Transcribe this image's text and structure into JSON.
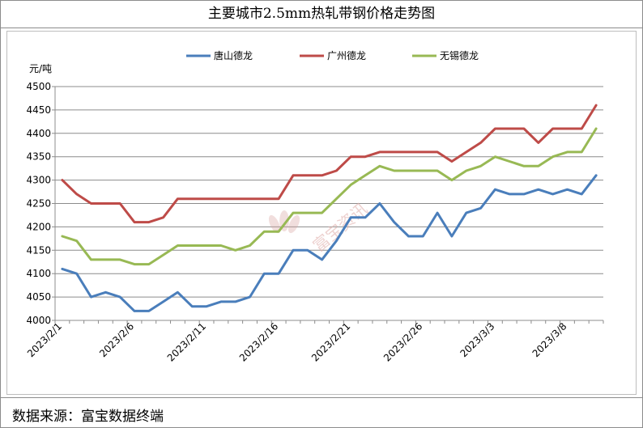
{
  "page": {
    "title": "主要城市2.5mm热轧带钢价格走势图",
    "source": "数据来源：富宝数据终端",
    "watermark": "富宝资讯"
  },
  "chart_data": {
    "type": "line",
    "title": "主要城市2.5mm热轧带钢价格走势图",
    "ylabel": "元/吨",
    "xlabel": "",
    "ylim": [
      4000,
      4500
    ],
    "yticks": [
      4000,
      4050,
      4100,
      4150,
      4200,
      4250,
      4300,
      4350,
      4400,
      4450,
      4500
    ],
    "x_tick_labels": [
      {
        "index": 0,
        "label": "2023/2/1"
      },
      {
        "index": 5,
        "label": "2023/2/6"
      },
      {
        "index": 10,
        "label": "2023/2/11"
      },
      {
        "index": 15,
        "label": "2023/2/16"
      },
      {
        "index": 20,
        "label": "2023/2/21"
      },
      {
        "index": 25,
        "label": "2023/2/26"
      },
      {
        "index": 30,
        "label": "2023/3/3"
      },
      {
        "index": 35,
        "label": "2023/3/8"
      }
    ],
    "grid": "horizontal",
    "legend_position": "top",
    "series": [
      {
        "name": "唐山德龙",
        "color": "#4a7ebb",
        "values": [
          4110,
          4100,
          4050,
          4060,
          4050,
          4020,
          4020,
          4040,
          4060,
          4030,
          4030,
          4040,
          4040,
          4050,
          4100,
          4100,
          4150,
          4150,
          4130,
          4170,
          4220,
          4220,
          4250,
          4210,
          4180,
          4180,
          4230,
          4180,
          4230,
          4240,
          4280,
          4270,
          4270,
          4280,
          4270,
          4280,
          4270,
          4310
        ]
      },
      {
        "name": "广州德龙",
        "color": "#be4b48",
        "values": [
          4300,
          4270,
          4250,
          4250,
          4250,
          4210,
          4210,
          4220,
          4260,
          4260,
          4260,
          4260,
          4260,
          4260,
          4260,
          4260,
          4310,
          4310,
          4310,
          4320,
          4350,
          4350,
          4360,
          4360,
          4360,
          4360,
          4360,
          4340,
          4360,
          4380,
          4410,
          4410,
          4410,
          4380,
          4410,
          4410,
          4410,
          4460
        ]
      },
      {
        "name": "无锡德龙",
        "color": "#98b954",
        "values": [
          4180,
          4170,
          4130,
          4130,
          4130,
          4120,
          4120,
          4140,
          4160,
          4160,
          4160,
          4160,
          4150,
          4160,
          4190,
          4190,
          4230,
          4230,
          4230,
          4260,
          4290,
          4310,
          4330,
          4320,
          4320,
          4320,
          4320,
          4300,
          4320,
          4330,
          4350,
          4340,
          4330,
          4330,
          4350,
          4360,
          4360,
          4410
        ]
      }
    ]
  }
}
